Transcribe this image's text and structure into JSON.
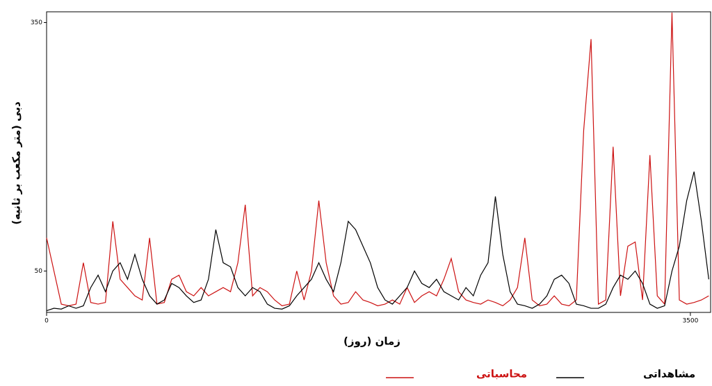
{
  "chart_data": {
    "type": "line",
    "xlabel": "زمان (روز)",
    "ylabel": "دبی (متر مکعب بر ثانیه)",
    "xlim": [
      0,
      3610
    ],
    "ylim": [
      0,
      363
    ],
    "xticks": [
      0,
      3500
    ],
    "yticks": [
      50,
      350
    ],
    "grid": false,
    "legend": "bottom",
    "x": [
      0,
      40,
      80,
      120,
      160,
      200,
      240,
      280,
      320,
      360,
      400,
      440,
      480,
      520,
      560,
      600,
      640,
      680,
      720,
      760,
      800,
      840,
      880,
      920,
      960,
      1000,
      1040,
      1080,
      1120,
      1160,
      1200,
      1240,
      1280,
      1320,
      1360,
      1400,
      1440,
      1480,
      1520,
      1560,
      1600,
      1640,
      1680,
      1720,
      1760,
      1800,
      1840,
      1880,
      1920,
      1960,
      2000,
      2040,
      2080,
      2120,
      2160,
      2200,
      2240,
      2280,
      2320,
      2360,
      2400,
      2440,
      2480,
      2520,
      2560,
      2600,
      2640,
      2680,
      2720,
      2760,
      2800,
      2840,
      2880,
      2920,
      2960,
      3000,
      3040,
      3080,
      3120,
      3160,
      3200,
      3240,
      3280,
      3320,
      3360,
      3400,
      3440,
      3480,
      3520,
      3560,
      3600
    ],
    "series": [
      {
        "name": "مشاهداتی",
        "color": "#000000",
        "values": [
          2,
          5,
          4,
          8,
          5,
          8,
          30,
          45,
          25,
          50,
          60,
          40,
          70,
          40,
          20,
          10,
          15,
          35,
          30,
          20,
          12,
          15,
          40,
          100,
          60,
          55,
          30,
          20,
          30,
          25,
          10,
          5,
          4,
          8,
          20,
          30,
          40,
          60,
          40,
          25,
          60,
          110,
          100,
          80,
          60,
          30,
          15,
          10,
          20,
          30,
          50,
          35,
          30,
          40,
          25,
          20,
          15,
          30,
          20,
          45,
          60,
          140,
          70,
          25,
          10,
          8,
          5,
          10,
          20,
          40,
          45,
          35,
          10,
          8,
          5,
          5,
          10,
          30,
          45,
          40,
          50,
          35,
          10,
          5,
          8,
          50,
          80,
          135,
          170,
          110,
          40
        ]
      },
      {
        "name": "محاسباتی",
        "color": "#cc1111",
        "values": [
          90,
          50,
          10,
          8,
          10,
          60,
          12,
          10,
          12,
          110,
          40,
          30,
          20,
          15,
          90,
          10,
          12,
          40,
          45,
          25,
          20,
          30,
          20,
          25,
          30,
          25,
          60,
          130,
          20,
          30,
          25,
          15,
          8,
          10,
          50,
          15,
          50,
          135,
          60,
          20,
          10,
          12,
          25,
          15,
          12,
          8,
          10,
          15,
          10,
          30,
          12,
          20,
          25,
          20,
          40,
          65,
          25,
          15,
          12,
          10,
          15,
          12,
          8,
          15,
          30,
          90,
          15,
          8,
          10,
          20,
          10,
          8,
          15,
          220,
          330,
          10,
          15,
          200,
          20,
          80,
          85,
          15,
          190,
          20,
          10,
          362,
          15,
          10,
          12,
          15,
          20
        ]
      }
    ]
  }
}
